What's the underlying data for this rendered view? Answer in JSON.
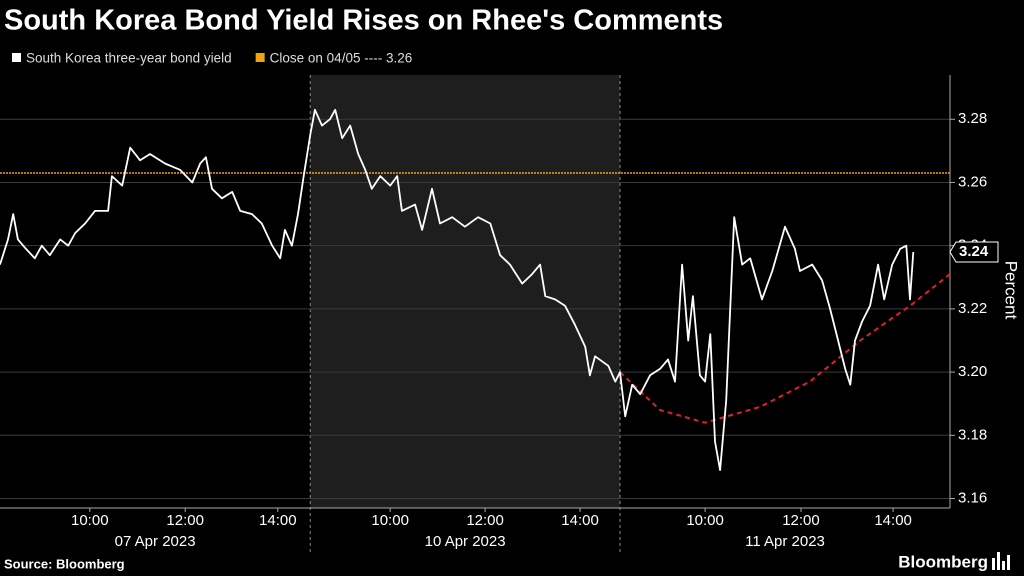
{
  "chart_data": {
    "type": "line",
    "title": "South Korea Bond Yield Rises on Rhee's Comments",
    "source": "Source: Bloomberg",
    "brand": "Bloomberg",
    "y_label": "Percent",
    "xlim": [
      0,
      20.21
    ],
    "ylim": [
      3.157,
      3.294
    ],
    "yticks": [
      3.16,
      3.18,
      {
        "value": 3.2,
        "label": "3.20"
      },
      3.22,
      3.24,
      3.26,
      3.28
    ],
    "xticks": [
      {
        "value": 1.91,
        "label": "10:00"
      },
      {
        "value": 3.94,
        "label": "12:00"
      },
      {
        "value": 5.91,
        "label": "14:00"
      },
      {
        "value": 8.3,
        "label": "10:00"
      },
      {
        "value": 10.32,
        "label": "12:00"
      },
      {
        "value": 12.34,
        "label": "14:00"
      },
      {
        "value": 15.0,
        "label": "10:00"
      },
      {
        "value": 17.04,
        "label": "12:00"
      },
      {
        "value": 19.0,
        "label": "14:00"
      }
    ],
    "x_groups": [
      "07 Apr 2023",
      "10 Apr 2023",
      "11 Apr 2023"
    ],
    "x_group_bounds": [
      0,
      6.6,
      13.19,
      20.21
    ],
    "shaded_group": 1,
    "grid": true,
    "x": [
      0,
      0.17,
      0.28,
      0.38,
      0.55,
      0.74,
      0.89,
      1.06,
      1.28,
      1.45,
      1.6,
      1.81,
      2.02,
      2.3,
      2.38,
      2.6,
      2.77,
      2.98,
      3.19,
      3.51,
      3.83,
      4.09,
      4.26,
      4.38,
      4.51,
      4.72,
      4.94,
      5.11,
      5.36,
      5.57,
      5.79,
      5.96,
      6.06,
      6.21,
      6.34,
      6.45,
      6.6,
      6.7,
      6.85,
      7.02,
      7.13,
      7.28,
      7.45,
      7.62,
      7.77,
      7.91,
      8.09,
      8.3,
      8.45,
      8.55,
      8.83,
      8.98,
      9.19,
      9.36,
      9.62,
      9.89,
      10.17,
      10.43,
      10.64,
      10.85,
      11.11,
      11.32,
      11.49,
      11.6,
      11.81,
      12.02,
      12.23,
      12.45,
      12.55,
      12.66,
      12.94,
      13.09,
      13.19,
      13.3,
      13.45,
      13.62,
      13.83,
      14.04,
      14.21,
      14.36,
      14.51,
      14.64,
      14.74,
      14.89,
      15.0,
      15.11,
      15.21,
      15.32,
      15.45,
      15.62,
      15.79,
      15.96,
      16.21,
      16.43,
      16.7,
      16.91,
      17.02,
      17.28,
      17.49,
      17.66,
      17.83,
      17.98,
      18.09,
      18.19,
      18.34,
      18.51,
      18.68,
      18.81,
      18.98,
      19.15,
      19.28,
      19.36,
      19.43
    ],
    "series": [
      {
        "name": "South Korea three-year bond yield",
        "color": "#ffffff",
        "values": [
          3.234,
          3.242,
          3.25,
          3.242,
          3.239,
          3.236,
          3.24,
          3.237,
          3.242,
          3.24,
          3.244,
          3.247,
          3.251,
          3.251,
          3.262,
          3.259,
          3.271,
          3.267,
          3.269,
          3.266,
          3.264,
          3.26,
          3.266,
          3.268,
          3.258,
          3.255,
          3.257,
          3.251,
          3.25,
          3.247,
          3.24,
          3.236,
          3.245,
          3.24,
          3.25,
          3.261,
          3.275,
          3.283,
          3.278,
          3.28,
          3.283,
          3.274,
          3.278,
          3.269,
          3.264,
          3.258,
          3.262,
          3.259,
          3.262,
          3.251,
          3.253,
          3.245,
          3.258,
          3.247,
          3.249,
          3.246,
          3.249,
          3.247,
          3.237,
          3.234,
          3.228,
          3.231,
          3.234,
          3.224,
          3.223,
          3.221,
          3.215,
          3.208,
          3.199,
          3.205,
          3.202,
          3.197,
          3.2,
          3.186,
          3.196,
          3.193,
          3.199,
          3.201,
          3.204,
          3.197,
          3.234,
          3.21,
          3.224,
          3.199,
          3.197,
          3.212,
          3.178,
          3.169,
          3.191,
          3.249,
          3.234,
          3.236,
          3.223,
          3.232,
          3.246,
          3.239,
          3.232,
          3.234,
          3.229,
          3.22,
          3.21,
          3.201,
          3.196,
          3.21,
          3.216,
          3.221,
          3.234,
          3.223,
          3.234,
          3.239,
          3.24,
          3.223,
          3.238
        ]
      },
      {
        "name": "Close on 04/05 ---- 3.26",
        "color": "#f0a30a",
        "reference": 3.263
      }
    ],
    "last_value": {
      "value": 3.238,
      "label": "3.24"
    },
    "trend": {
      "color": "#e0202a",
      "dashed": true,
      "x": [
        13.19,
        14.04,
        15.0,
        16.17,
        17.23,
        18.3,
        19.36,
        20.21
      ],
      "values": [
        3.2,
        3.188,
        3.184,
        3.189,
        3.197,
        3.21,
        3.221,
        3.231
      ]
    }
  }
}
